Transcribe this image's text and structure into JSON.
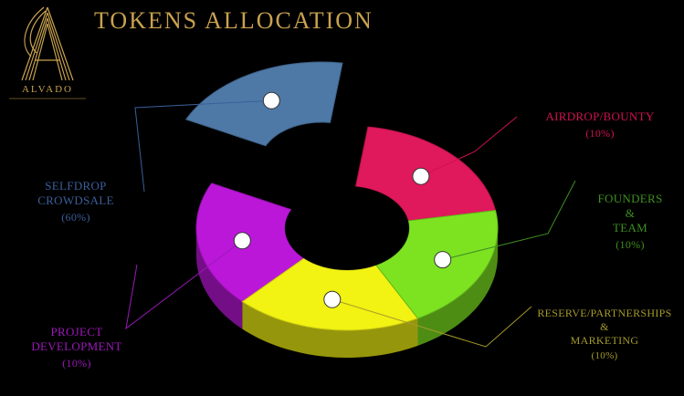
{
  "header": {
    "title": "TOKENS ALLOCATION",
    "brand": "ALVADO"
  },
  "chart_data": {
    "type": "pie",
    "title": "TOKENS ALLOCATION",
    "donut": true,
    "style": "3d",
    "slices": [
      {
        "label": [
          "SELFDROP",
          "CROWDSALE"
        ],
        "pct": "(60%)",
        "value": 60,
        "color": "#4e79a7"
      },
      {
        "label": [
          "AIRDROP/BOUNTY"
        ],
        "pct": "(10%)",
        "value": 10,
        "color": "#e0185c"
      },
      {
        "label": [
          "FOUNDERS",
          "&",
          "TEAM"
        ],
        "pct": "(10%)",
        "value": 10,
        "color": "#7de321"
      },
      {
        "label": [
          "RESERVE/PARTNERSHIPS",
          "&",
          "MARKETING"
        ],
        "pct": "(10%)",
        "value": 10,
        "color": "#f2f213"
      },
      {
        "label": [
          "PROJECT",
          "DEVELOPMENT"
        ],
        "pct": "(10%)",
        "value": 10,
        "color": "#bb17d9"
      }
    ],
    "label_colors": [
      "#3a5f9a",
      "#d0104f",
      "#3f8f20",
      "#a59a2a",
      "#9a18b8"
    ]
  }
}
